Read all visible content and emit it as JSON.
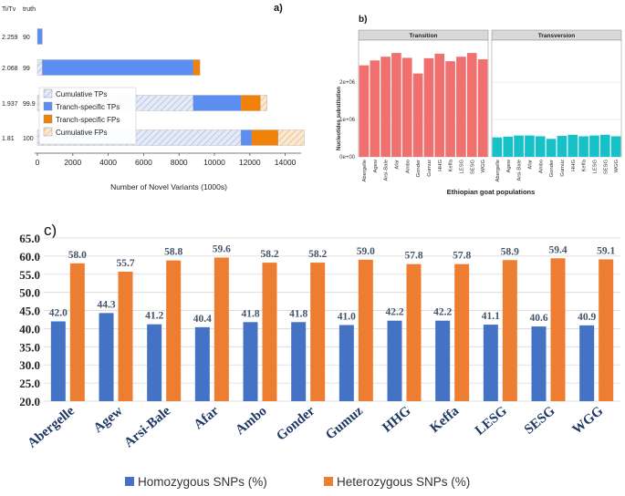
{
  "chart_data": [
    {
      "type": "bar",
      "orientation": "horizontal",
      "panel_label": "a)",
      "xlabel": "Number of Novel Variants (1000s)",
      "xlim": [
        0,
        15000
      ],
      "xticks": [
        "0",
        "2000",
        "4000",
        "6000",
        "8000",
        "10000",
        "12000",
        "14000"
      ],
      "row_header": {
        "titv": "Ti/Tv",
        "truth": "truth"
      },
      "rows": [
        {
          "titv": "2.259",
          "truth": "90",
          "cumulative_tps": 0,
          "tranche_tps": 280,
          "tranche_fps": 0,
          "cumulative_fps": 0
        },
        {
          "titv": "2.068",
          "truth": "99",
          "cumulative_tps": 280,
          "tranche_tps": 8520,
          "tranche_fps": 380,
          "cumulative_fps": 0
        },
        {
          "titv": "1.937",
          "truth": "99.9",
          "cumulative_tps": 8800,
          "tranche_tps": 2700,
          "tranche_fps": 1100,
          "cumulative_fps": 380
        },
        {
          "titv": "1.81",
          "truth": "100",
          "cumulative_tps": 11500,
          "tranche_tps": 600,
          "tranche_fps": 1500,
          "cumulative_fps": 1480
        }
      ],
      "legend": [
        "Cumulative TPs",
        "Tranch-specific TPs",
        "Tranch-specific FPs",
        "Cumulative FPs"
      ],
      "colors": {
        "cumulative_tps": "#dfe6f3",
        "tranche_tps": "#5b8ef0",
        "tranche_fps": "#f0820a",
        "cumulative_fps": "#f7dfc0"
      }
    },
    {
      "type": "bar",
      "panel_label": "b)",
      "facets": [
        "Transition",
        "Transversion"
      ],
      "ylabel": "Nucleotides substitution",
      "xlabel": "Ethiopian goat populations",
      "yticks": [
        "0e+00",
        "1e+06",
        "2e+06"
      ],
      "ylim": [
        0,
        3100000
      ],
      "categories": [
        "Abergelle",
        "Agew",
        "Arsi-Bale",
        "Afar",
        "Ambo",
        "Gonder",
        "Gumuz",
        "HHG",
        "Keffa",
        "LESG",
        "SESG",
        "WGG"
      ],
      "series": [
        {
          "name": "Transition",
          "color": "#f07070",
          "values": [
            2450000,
            2580000,
            2680000,
            2780000,
            2650000,
            2230000,
            2640000,
            2760000,
            2560000,
            2680000,
            2780000,
            2610000
          ]
        },
        {
          "name": "Transversion",
          "color": "#16c2c8",
          "values": [
            520000,
            540000,
            570000,
            570000,
            550000,
            480000,
            560000,
            590000,
            550000,
            570000,
            590000,
            550000
          ]
        }
      ]
    },
    {
      "type": "bar",
      "panel_label": "c)",
      "ylim": [
        20,
        65
      ],
      "yticks": [
        "20.0",
        "25.0",
        "30.0",
        "35.0",
        "40.0",
        "45.0",
        "50.0",
        "55.0",
        "60.0",
        "65.0"
      ],
      "categories": [
        "Abergelle",
        "Agew",
        "Arsi-Bale",
        "Afar",
        "Ambo",
        "Gonder",
        "Gumuz",
        "HHG",
        "Keffa",
        "LESG",
        "SESG",
        "WGG"
      ],
      "series": [
        {
          "name": "Homozygous SNPs (%)",
          "color": "#4472c4",
          "values": [
            42.0,
            44.3,
            41.2,
            40.4,
            41.8,
            41.8,
            41.0,
            42.2,
            42.2,
            41.1,
            40.6,
            40.9
          ],
          "labels": [
            "42.0",
            "44.3",
            "41.2",
            "40.4",
            "41.8",
            "41.8",
            "41.0",
            "42.2",
            "42.2",
            "41.1",
            "40.6",
            "40.9"
          ]
        },
        {
          "name": "Heterozygous SNPs (%)",
          "color": "#ed7d31",
          "values": [
            58.0,
            55.7,
            58.8,
            59.6,
            58.2,
            58.2,
            59.0,
            57.8,
            57.8,
            58.9,
            59.4,
            59.1
          ],
          "labels": [
            "58.0",
            "55.7",
            "58.8",
            "59.6",
            "58.2",
            "58.2",
            "59.0",
            "57.8",
            "57.8",
            "58.9",
            "59.4",
            "59.1"
          ]
        }
      ]
    }
  ]
}
